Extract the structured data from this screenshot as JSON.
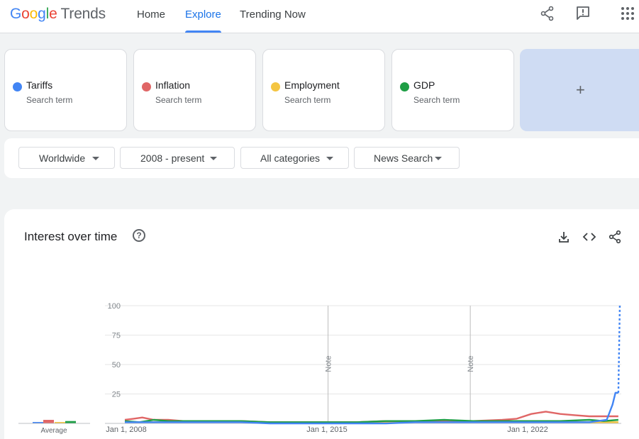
{
  "header": {
    "logo": {
      "google": [
        "G",
        "o",
        "o",
        "g",
        "l",
        "e"
      ],
      "trends": "Trends"
    },
    "tabs": [
      {
        "label": "Home",
        "active": false
      },
      {
        "label": "Explore",
        "active": true
      },
      {
        "label": "Trending Now",
        "active": false
      }
    ],
    "icons": [
      "share-icon",
      "feedback-icon",
      "apps-grid-icon"
    ]
  },
  "terms": [
    {
      "name": "Tariffs",
      "sub": "Search term",
      "color": "#4285f4"
    },
    {
      "name": "Inflation",
      "sub": "Search term",
      "color": "#e06666"
    },
    {
      "name": "Employment",
      "sub": "Search term",
      "color": "#f4c542"
    },
    {
      "name": "GDP",
      "sub": "Search term",
      "color": "#1e9e45"
    }
  ],
  "add_term": {
    "label": "+"
  },
  "filters": [
    {
      "label": "Worldwide"
    },
    {
      "label": "2008 - present"
    },
    {
      "label": "All categories"
    },
    {
      "label": "News Search"
    }
  ],
  "chart_section": {
    "title": "Interest over time",
    "help": "?",
    "icons": [
      "download-icon",
      "embed-code-icon",
      "share-icon"
    ]
  },
  "chart_data": {
    "type": "line",
    "y_ticks": [
      100,
      75,
      50,
      25
    ],
    "ylim": [
      0,
      100
    ],
    "x_tick_labels": [
      "Jan 1, 2008",
      "Jan 1, 2015",
      "Jan 1, 2022"
    ],
    "xlim": [
      2008,
      2025.1
    ],
    "notes": [
      {
        "x": 2015.0,
        "label": "Note"
      },
      {
        "x": 2019.9,
        "label": "Note"
      }
    ],
    "average_label": "Average",
    "averages": [
      {
        "name": "Tariffs",
        "value": 1,
        "color": "#4285f4"
      },
      {
        "name": "Inflation",
        "value": 3,
        "color": "#e06666"
      },
      {
        "name": "Employment",
        "value": 1,
        "color": "#f4c542"
      },
      {
        "name": "GDP",
        "value": 2,
        "color": "#1e9e45"
      }
    ],
    "series": [
      {
        "name": "Tariffs",
        "color": "#4285f4",
        "x": [
          2008,
          2009,
          2010,
          2011,
          2012,
          2013,
          2014,
          2015,
          2016,
          2017,
          2018,
          2019,
          2020,
          2021,
          2022,
          2023,
          2024,
          2024.6,
          2024.8,
          2024.9,
          2025.0
        ],
        "y": [
          1,
          1,
          1,
          1,
          1,
          0,
          0,
          0,
          0,
          0,
          1,
          1,
          1,
          1,
          1,
          1,
          1,
          3,
          16,
          26,
          26
        ],
        "partial_from": 2024.9,
        "partial_to": [
          2025.05,
          100
        ]
      },
      {
        "name": "Inflation",
        "color": "#e06666",
        "x": [
          2008,
          2008.3,
          2008.6,
          2009,
          2009.5,
          2010,
          2011,
          2012,
          2013,
          2014,
          2015,
          2016,
          2017,
          2018,
          2019,
          2020,
          2021,
          2021.5,
          2022,
          2022.5,
          2023,
          2023.5,
          2024,
          2024.5,
          2025.0
        ],
        "y": [
          3,
          4,
          5,
          3,
          3,
          2,
          2,
          2,
          1,
          1,
          1,
          1,
          2,
          2,
          2,
          2,
          3,
          4,
          8,
          10,
          8,
          7,
          6,
          6,
          6
        ]
      },
      {
        "name": "Employment",
        "color": "#f4c542",
        "x": [
          2008,
          2010,
          2012,
          2014,
          2016,
          2018,
          2020,
          2022,
          2024,
          2025.0
        ],
        "y": [
          1,
          1,
          1,
          1,
          1,
          1,
          1,
          1,
          1,
          1
        ]
      },
      {
        "name": "GDP",
        "color": "#1e9e45",
        "x": [
          2008,
          2008.5,
          2009,
          2009.5,
          2010,
          2011,
          2012,
          2013,
          2014,
          2015,
          2016,
          2017,
          2018,
          2019,
          2020,
          2021,
          2022,
          2023,
          2024,
          2024.5,
          2025.0
        ],
        "y": [
          2,
          1,
          3,
          2,
          2,
          2,
          2,
          1,
          1,
          1,
          1,
          2,
          2,
          3,
          2,
          2,
          2,
          2,
          3,
          2,
          3
        ]
      }
    ]
  }
}
